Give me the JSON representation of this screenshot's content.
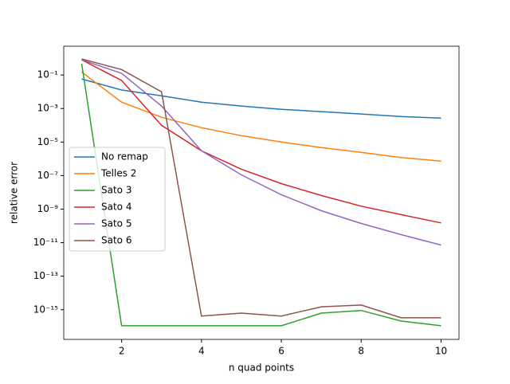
{
  "chart_data": {
    "type": "line",
    "xlabel": "n quad points",
    "ylabel": "relative error",
    "x": [
      1,
      2,
      3,
      4,
      5,
      6,
      7,
      8,
      9,
      10
    ],
    "xlim": [
      0.55,
      10.45
    ],
    "xticks": [
      2,
      4,
      6,
      8,
      10
    ],
    "ylim": [
      1.7e-17,
      5.2
    ],
    "yscale": "log",
    "yticks": [
      {
        "value": 0.1,
        "label": "10⁻¹"
      },
      {
        "value": 0.001,
        "label": "10⁻³"
      },
      {
        "value": 1e-05,
        "label": "10⁻⁵"
      },
      {
        "value": 1e-07,
        "label": "10⁻⁷"
      },
      {
        "value": 1e-09,
        "label": "10⁻⁹"
      },
      {
        "value": 1e-11,
        "label": "10⁻¹¹"
      },
      {
        "value": 1e-13,
        "label": "10⁻¹³"
      },
      {
        "value": 1e-15,
        "label": "10⁻¹⁵"
      }
    ],
    "legend": "center left",
    "series": [
      {
        "name": "No remap",
        "color": "#1f77b4",
        "values": [
          0.058,
          0.0126,
          0.0057,
          0.0024,
          0.0014,
          0.0009,
          0.00065,
          0.00047,
          0.00033,
          0.00027
        ]
      },
      {
        "name": "Telles 2",
        "color": "#ff7f0e",
        "values": [
          0.15,
          0.0024,
          0.0003,
          7.2e-05,
          2.4e-05,
          1e-05,
          4.7e-06,
          2.4e-06,
          1.2e-06,
          7.2e-07
        ]
      },
      {
        "name": "Sato 3",
        "color": "#2ca02c",
        "values": [
          0.47,
          1.1e-16,
          1.1e-16,
          1.1e-16,
          1.1e-16,
          1.1e-16,
          6.3e-16,
          9e-16,
          2.1e-16,
          1.1e-16
        ]
      },
      {
        "name": "Sato 4",
        "color": "#d62728",
        "values": [
          0.8,
          0.047,
          0.0001,
          3e-06,
          2.4e-07,
          3.3e-08,
          6.5e-09,
          1.5e-09,
          4.7e-10,
          1.5e-10
        ]
      },
      {
        "name": "Sato 5",
        "color": "#9467bd",
        "values": [
          0.8,
          0.125,
          0.0014,
          3e-06,
          1.1e-07,
          7.2e-09,
          8e-10,
          1.4e-10,
          3e-11,
          7.2e-12
        ]
      },
      {
        "name": "Sato 6",
        "color": "#8c564b",
        "values": [
          0.9,
          0.21,
          0.01,
          4.2e-16,
          6.3e-16,
          4.2e-16,
          1.5e-15,
          1.9e-15,
          3.3e-16,
          3.3e-16
        ]
      }
    ]
  }
}
